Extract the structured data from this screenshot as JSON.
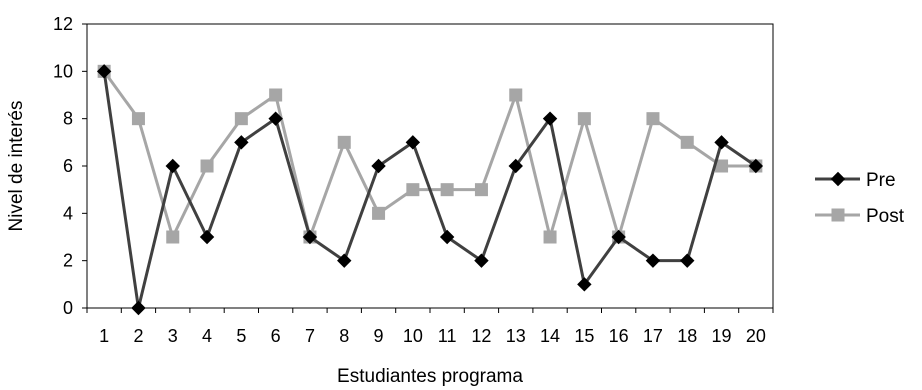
{
  "chart_data": {
    "type": "line",
    "xlabel": "Estudiantes programa",
    "ylabel": "Nivel de interés",
    "x": [
      1,
      2,
      3,
      4,
      5,
      6,
      7,
      8,
      9,
      10,
      11,
      12,
      13,
      14,
      15,
      16,
      17,
      18,
      19,
      20
    ],
    "ylim": [
      0,
      12
    ],
    "yticks": [
      0,
      2,
      4,
      6,
      8,
      10,
      12
    ],
    "grid": false,
    "legend_position": "right",
    "series": [
      {
        "name": "Pre",
        "color": "#404040",
        "marker": "diamond",
        "values": [
          10,
          0,
          6,
          3,
          7,
          8,
          3,
          2,
          6,
          7,
          3,
          2,
          6,
          8,
          1,
          3,
          2,
          2,
          7,
          6
        ]
      },
      {
        "name": "Post",
        "color": "#a6a6a6",
        "marker": "square",
        "values": [
          10,
          8,
          3,
          6,
          8,
          9,
          3,
          7,
          4,
          5,
          5,
          5,
          9,
          3,
          8,
          3,
          8,
          7,
          6,
          6
        ]
      }
    ]
  }
}
